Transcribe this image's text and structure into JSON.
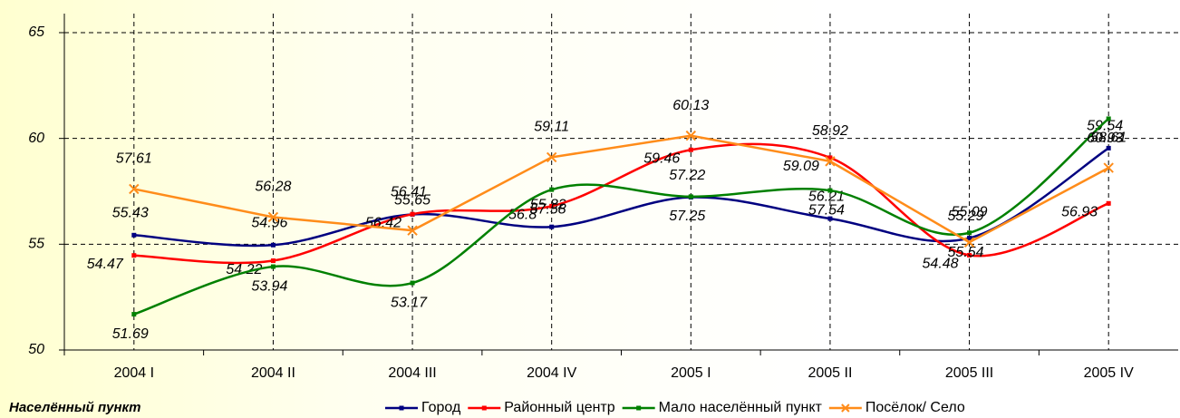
{
  "chart_data": {
    "type": "line",
    "categories": [
      "2004 I",
      "2004 II",
      "2004 III",
      "2004 IV",
      "2005 I",
      "2005 II",
      "2005 III",
      "2005 IV"
    ],
    "series": [
      {
        "name": "Город",
        "color": "#000080",
        "marker": "square",
        "smooth": true,
        "values": [
          55.43,
          54.96,
          56.41,
          55.82,
          57.22,
          56.21,
          55.29,
          59.54
        ]
      },
      {
        "name": "Районный центр",
        "color": "#ff0000",
        "marker": "square",
        "smooth": true,
        "values": [
          54.47,
          54.22,
          56.42,
          56.8,
          59.46,
          59.09,
          54.48,
          56.93
        ]
      },
      {
        "name": "Мало населённый пункт",
        "color": "#008000",
        "marker": "square",
        "smooth": true,
        "values": [
          51.69,
          53.94,
          53.17,
          57.58,
          57.25,
          57.54,
          55.54,
          60.93
        ]
      },
      {
        "name": "Посёлок/ Село",
        "color": "#ff8c1a",
        "marker": "x",
        "smooth": false,
        "values": [
          57.61,
          56.28,
          55.65,
          59.11,
          60.13,
          58.92,
          55.09,
          58.61
        ]
      }
    ],
    "legend_title": "Населённый пункт",
    "ylim": [
      50,
      65.9
    ],
    "yticks": [
      50,
      55,
      60,
      65
    ],
    "grid": true
  }
}
